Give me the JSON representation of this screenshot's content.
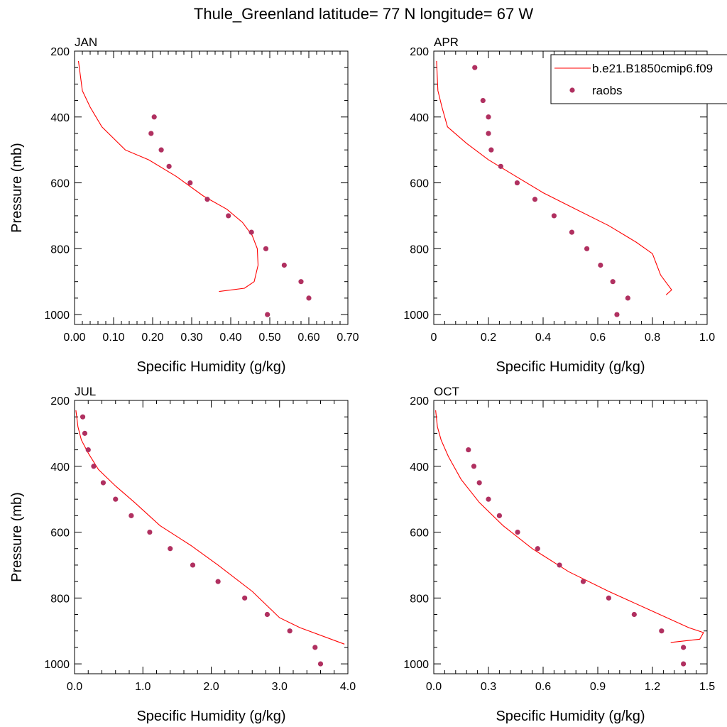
{
  "title": "Thule_Greenland  latitude= 77 N longitude= 67 W",
  "legend": {
    "model_label": "b.e21.B1850cmip6.f09",
    "obs_label": "raobs"
  },
  "colors": {
    "model_line": "#ff0000",
    "obs_marker": "#b03060",
    "axes": "#000000"
  },
  "chart_data": [
    {
      "type": "line",
      "panel": "JAN",
      "xlabel": "Specific Humidity (g/kg)",
      "ylabel": "Pressure (mb)",
      "xlim": [
        0,
        0.7
      ],
      "ylim": [
        1030,
        200
      ],
      "xticks": [
        "0.00",
        "0.10",
        "0.20",
        "0.30",
        "0.40",
        "0.50",
        "0.60",
        "0.70"
      ],
      "xtick_values": [
        0,
        0.1,
        0.2,
        0.3,
        0.4,
        0.5,
        0.6,
        0.7
      ],
      "yticks": [
        200,
        400,
        600,
        800,
        1000
      ],
      "series": [
        {
          "name": "b.e21.B1850cmip6.f09",
          "kind": "line",
          "x": [
            0.37,
            0.435,
            0.46,
            0.47,
            0.468,
            0.455,
            0.43,
            0.39,
            0.33,
            0.26,
            0.19,
            0.13,
            0.07,
            0.04,
            0.02,
            0.01
          ],
          "y": [
            930,
            920,
            900,
            850,
            800,
            760,
            720,
            680,
            640,
            580,
            530,
            500,
            430,
            370,
            320,
            230
          ]
        },
        {
          "name": "raobs",
          "kind": "scatter",
          "x": [
            0.494,
            0.6,
            0.58,
            0.537,
            0.49,
            0.453,
            0.394,
            0.34,
            0.296,
            0.242,
            0.222,
            0.196,
            0.204
          ],
          "y": [
            1000,
            950,
            900,
            850,
            800,
            750,
            700,
            650,
            600,
            550,
            500,
            450,
            400
          ]
        }
      ]
    },
    {
      "type": "line",
      "panel": "APR",
      "xlabel": "Specific Humidity (g/kg)",
      "ylabel": "",
      "xlim": [
        0,
        1.0
      ],
      "ylim": [
        1030,
        200
      ],
      "xticks": [
        "0",
        "0.2",
        "0.4",
        "0.6",
        "0.8",
        "1.0"
      ],
      "xtick_values": [
        0,
        0.2,
        0.4,
        0.6,
        0.8,
        1.0
      ],
      "yticks": [
        200,
        400,
        600,
        800,
        1000
      ],
      "series": [
        {
          "name": "b.e21.B1850cmip6.f09",
          "kind": "line",
          "x": [
            0.85,
            0.87,
            0.83,
            0.8,
            0.74,
            0.64,
            0.52,
            0.4,
            0.3,
            0.2,
            0.12,
            0.05,
            0.03,
            0.015,
            0.01
          ],
          "y": [
            940,
            925,
            880,
            815,
            780,
            730,
            680,
            630,
            580,
            530,
            480,
            430,
            370,
            320,
            230
          ]
        },
        {
          "name": "raobs",
          "kind": "scatter",
          "x": [
            0.67,
            0.71,
            0.655,
            0.61,
            0.56,
            0.505,
            0.44,
            0.37,
            0.305,
            0.245,
            0.21,
            0.2,
            0.2,
            0.18,
            0.15
          ],
          "y": [
            1000,
            950,
            900,
            850,
            800,
            750,
            700,
            650,
            600,
            550,
            500,
            450,
            400,
            350,
            250
          ]
        }
      ]
    },
    {
      "type": "line",
      "panel": "JUL",
      "xlabel": "Specific Humidity (g/kg)",
      "ylabel": "Pressure (mb)",
      "xlim": [
        0,
        4.0
      ],
      "ylim": [
        1030,
        200
      ],
      "xticks": [
        "0.0",
        "1.0",
        "2.0",
        "3.0",
        "4.0"
      ],
      "xtick_values": [
        0,
        1,
        2,
        3,
        4
      ],
      "yticks": [
        200,
        400,
        600,
        800,
        1000
      ],
      "series": [
        {
          "name": "b.e21.B1850cmip6.f09",
          "kind": "line",
          "x": [
            3.95,
            3.3,
            3.0,
            2.6,
            2.1,
            1.7,
            1.25,
            0.88,
            0.6,
            0.35,
            0.2,
            0.1,
            0.05,
            0.02
          ],
          "y": [
            940,
            890,
            860,
            780,
            700,
            640,
            580,
            510,
            460,
            410,
            360,
            320,
            280,
            230
          ]
        },
        {
          "name": "raobs",
          "kind": "scatter",
          "x": [
            3.6,
            3.52,
            3.15,
            2.82,
            2.49,
            2.1,
            1.73,
            1.4,
            1.1,
            0.83,
            0.6,
            0.42,
            0.28,
            0.2,
            0.15,
            0.12
          ],
          "y": [
            1000,
            950,
            900,
            850,
            800,
            750,
            700,
            650,
            600,
            550,
            500,
            450,
            400,
            350,
            300,
            250
          ]
        }
      ]
    },
    {
      "type": "line",
      "panel": "OCT",
      "xlabel": "Specific Humidity (g/kg)",
      "ylabel": "",
      "xlim": [
        0,
        1.5
      ],
      "ylim": [
        1030,
        200
      ],
      "xticks": [
        "0.0",
        "0.3",
        "0.6",
        "0.9",
        "1.2",
        "1.5"
      ],
      "xtick_values": [
        0,
        0.3,
        0.6,
        0.9,
        1.2,
        1.5
      ],
      "yticks": [
        200,
        400,
        600,
        800,
        1000
      ],
      "series": [
        {
          "name": "b.e21.B1850cmip6.f09",
          "kind": "line",
          "x": [
            1.3,
            1.46,
            1.48,
            1.4,
            1.2,
            0.96,
            0.74,
            0.54,
            0.38,
            0.25,
            0.15,
            0.08,
            0.04,
            0.02,
            0.01
          ],
          "y": [
            935,
            925,
            905,
            890,
            840,
            780,
            720,
            650,
            580,
            510,
            440,
            370,
            320,
            280,
            230
          ]
        },
        {
          "name": "raobs",
          "kind": "scatter",
          "x": [
            1.37,
            1.37,
            1.25,
            1.1,
            0.96,
            0.82,
            0.69,
            0.57,
            0.46,
            0.36,
            0.3,
            0.25,
            0.22,
            0.19
          ],
          "y": [
            1000,
            950,
            900,
            850,
            800,
            750,
            700,
            650,
            600,
            550,
            500,
            450,
            400,
            350
          ]
        }
      ]
    }
  ]
}
